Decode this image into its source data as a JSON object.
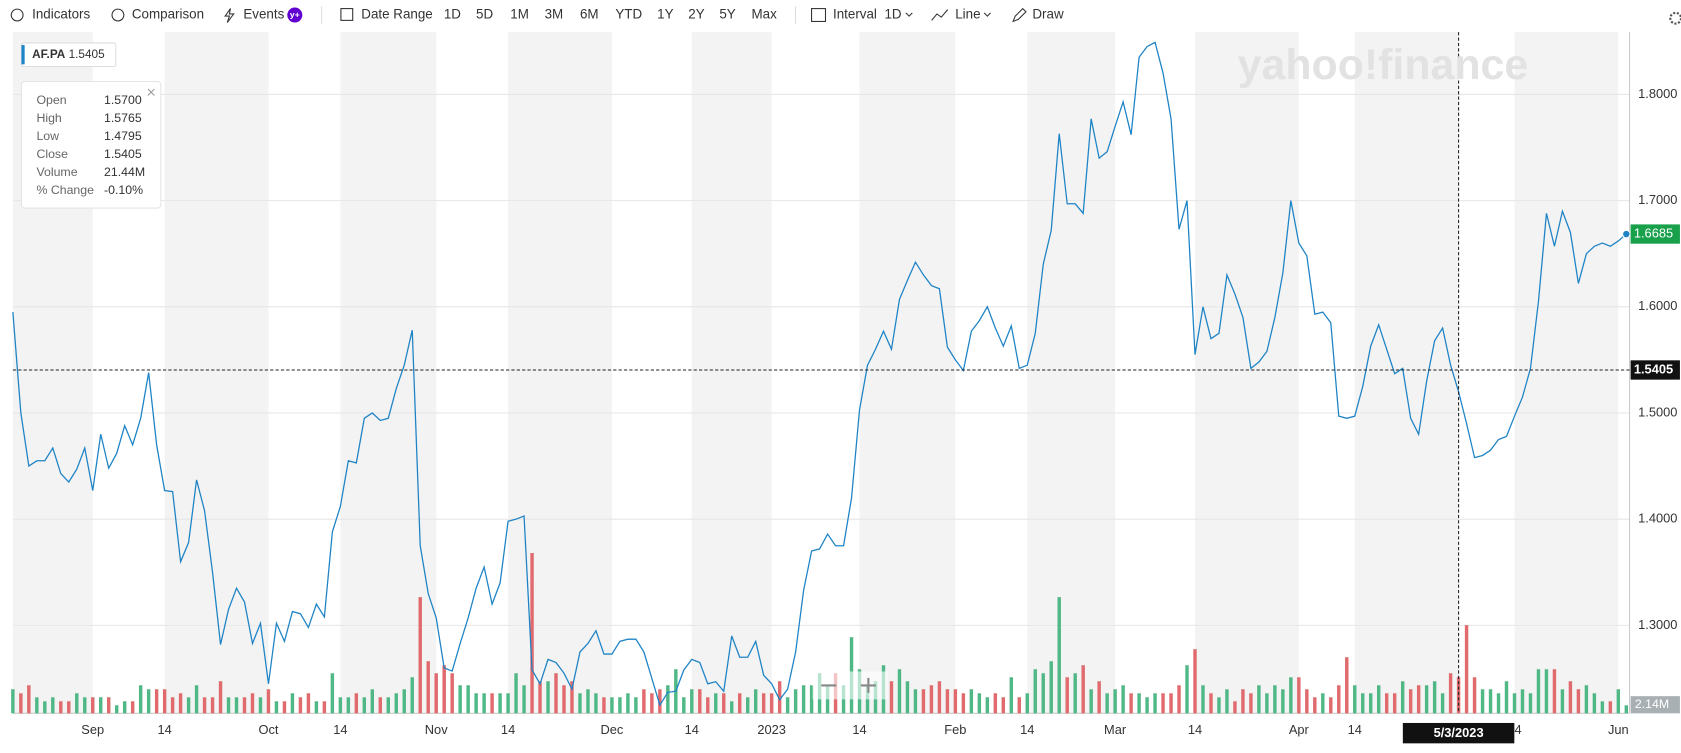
{
  "toolbar": {
    "buttons": [
      "Indicators",
      "Comparison",
      "Events",
      "Date Range",
      "1D",
      "5D",
      "1M",
      "3M",
      "6M",
      "YTD",
      "1Y",
      "2Y",
      "5Y",
      "Max",
      "Interval",
      "1D",
      "Line",
      "Draw"
    ],
    "events_badge": "y+"
  },
  "watermark": "yahoo!finance",
  "tooltip": {
    "rows": [
      [
        "Open",
        "1.5700"
      ],
      [
        "High",
        "1.5765"
      ],
      [
        "Low",
        "1.4795"
      ],
      [
        "Close",
        "1.5405"
      ],
      [
        "Volume",
        "21.44M"
      ],
      [
        "% Change",
        "-0.10%"
      ]
    ]
  },
  "chart_data": {
    "type": "line",
    "categories": [
      null,
      null,
      null,
      null,
      null,
      null,
      null,
      null,
      null,
      null,
      "Sep",
      null,
      null,
      null,
      null,
      null,
      null,
      null,
      null,
      "14",
      null,
      null,
      null,
      null,
      null,
      null,
      null,
      null,
      null,
      null,
      null,
      null,
      "Oct",
      null,
      null,
      null,
      null,
      null,
      null,
      null,
      null,
      "14",
      null,
      null,
      null,
      null,
      null,
      null,
      null,
      null,
      null,
      null,
      null,
      "Nov",
      null,
      null,
      null,
      null,
      null,
      null,
      null,
      null,
      "14",
      null,
      null,
      null,
      null,
      null,
      null,
      null,
      null,
      null,
      null,
      null,
      null,
      "Dec",
      null,
      null,
      null,
      null,
      null,
      null,
      null,
      null,
      null,
      "14",
      null,
      null,
      null,
      null,
      null,
      null,
      null,
      null,
      null,
      "2023",
      null,
      null,
      null,
      null,
      null,
      null,
      null,
      null,
      null,
      null,
      "14",
      null,
      null,
      null,
      null,
      null,
      null,
      null,
      null,
      null,
      null,
      null,
      "Feb",
      null,
      null,
      null,
      null,
      null,
      null,
      null,
      null,
      "14",
      null,
      null,
      null,
      null,
      null,
      null,
      null,
      null,
      null,
      null,
      "Mar",
      null,
      null,
      null,
      null,
      null,
      null,
      null,
      null,
      null,
      "14",
      null,
      null,
      null,
      null,
      null,
      null,
      null,
      null,
      null,
      null,
      null,
      null,
      "Apr",
      null,
      null,
      null,
      null,
      null,
      null,
      "14",
      null,
      null,
      null,
      null,
      null,
      null,
      null,
      null,
      null,
      null,
      null,
      null,
      "5/3/2023",
      null,
      null,
      null,
      null,
      null,
      null,
      "14",
      null,
      null,
      null,
      null,
      null,
      null,
      null,
      null,
      null,
      null,
      null,
      null,
      "Jun",
      null
    ],
    "series": [
      {
        "name": "AF.PA",
        "color": "#1f84c6",
        "values": [
          1.595,
          1.5,
          1.45,
          1.455,
          1.455,
          1.467,
          1.443,
          1.435,
          1.447,
          1.467,
          1.427,
          1.48,
          1.448,
          1.462,
          1.488,
          1.47,
          1.495,
          1.538,
          1.47,
          1.427,
          1.426,
          1.36,
          1.378,
          1.437,
          1.408,
          1.35,
          1.282,
          1.315,
          1.335,
          1.322,
          1.283,
          1.302,
          1.245,
          1.302,
          1.285,
          1.313,
          1.311,
          1.298,
          1.32,
          1.308,
          1.388,
          1.412,
          1.455,
          1.453,
          1.495,
          1.5,
          1.493,
          1.495,
          1.523,
          1.545,
          1.578,
          1.375,
          1.33,
          1.307,
          1.26,
          1.257,
          1.283,
          1.307,
          1.335,
          1.355,
          1.32,
          1.34,
          1.398,
          1.4,
          1.403,
          1.258,
          1.245,
          1.268,
          1.265,
          1.255,
          1.24,
          1.275,
          1.283,
          1.295,
          1.273,
          1.273,
          1.285,
          1.287,
          1.287,
          1.275,
          1.25,
          1.225,
          1.237,
          1.238,
          1.258,
          1.268,
          1.265,
          1.245,
          1.247,
          1.238,
          1.29,
          1.27,
          1.27,
          1.285,
          1.253,
          1.245,
          1.23,
          1.24,
          1.275,
          1.333,
          1.37,
          1.372,
          1.386,
          1.375,
          1.375,
          1.42,
          1.503,
          1.545,
          1.56,
          1.577,
          1.56,
          1.607,
          1.625,
          1.642,
          1.63,
          1.62,
          1.617,
          1.562,
          1.55,
          1.54,
          1.577,
          1.587,
          1.6,
          1.58,
          1.563,
          1.582,
          1.542,
          1.545,
          1.575,
          1.64,
          1.672,
          1.763,
          1.697,
          1.697,
          1.688,
          1.777,
          1.74,
          1.746,
          1.77,
          1.793,
          1.762,
          1.835,
          1.845,
          1.849,
          1.82,
          1.777,
          1.673,
          1.7,
          1.555,
          1.6,
          1.57,
          1.575,
          1.63,
          1.612,
          1.59,
          1.542,
          1.548,
          1.558,
          1.59,
          1.632,
          1.7,
          1.66,
          1.648,
          1.593,
          1.595,
          1.585,
          1.497,
          1.495,
          1.497,
          1.525,
          1.563,
          1.583,
          1.56,
          1.537,
          1.542,
          1.495,
          1.48,
          1.53,
          1.568,
          1.58,
          1.545,
          1.52,
          1.49,
          1.458,
          1.46,
          1.465,
          1.475,
          1.478,
          1.497,
          1.515,
          1.542,
          1.605,
          1.688,
          1.657,
          1.69,
          1.67,
          1.622,
          1.65,
          1.657,
          1.66,
          1.657,
          1.662,
          1.6685
        ]
      },
      {
        "name": "Volume",
        "axis": "y2",
        "up_color": "#4fb886",
        "down_color": "#e06a6e",
        "values": [
          6,
          5,
          7,
          4,
          3,
          4,
          3,
          3,
          5,
          4,
          4,
          4,
          4,
          2,
          3,
          3,
          7,
          6,
          6,
          6,
          4,
          5,
          4,
          7,
          4,
          4,
          8,
          4,
          4,
          4,
          5,
          4,
          6,
          3,
          3,
          5,
          4,
          5,
          3,
          3,
          10,
          4,
          4,
          5,
          4,
          6,
          4,
          4,
          5,
          6,
          9,
          29,
          13,
          10,
          12,
          10,
          7,
          7,
          5,
          5,
          5,
          5,
          5,
          10,
          7,
          40,
          8,
          8,
          10,
          7,
          8,
          5,
          6,
          5,
          4,
          4,
          4,
          5,
          4,
          6,
          5,
          6,
          7,
          11,
          4,
          6,
          6,
          4,
          5,
          5,
          3,
          5,
          4,
          6,
          5,
          5,
          8,
          4,
          6,
          7,
          7,
          10,
          7,
          10,
          7,
          19,
          11,
          7,
          8,
          12,
          8,
          11,
          8,
          6,
          6,
          7,
          8,
          6,
          6,
          5,
          6,
          5,
          4,
          5,
          4,
          9,
          4,
          5,
          11,
          10,
          13,
          29,
          9,
          10,
          12,
          6,
          8,
          5,
          6,
          7,
          5,
          5,
          4,
          5,
          5,
          5,
          7,
          12,
          16,
          7,
          5,
          4,
          6,
          3,
          6,
          5,
          7,
          5,
          7,
          6,
          9,
          9,
          6,
          4,
          5,
          4,
          7,
          14,
          7,
          5,
          5,
          7,
          5,
          5,
          8,
          6,
          7,
          7,
          8,
          5,
          10,
          9,
          22,
          9,
          6,
          6,
          5,
          8,
          5,
          6,
          5,
          11,
          11,
          11,
          6,
          8,
          6,
          7,
          5,
          3,
          3,
          6,
          2
        ]
      }
    ],
    "ylim": [
      1.2172,
      1.8586
    ],
    "yticks": [
      {
        "value": 1.3,
        "label": "1.3000"
      },
      {
        "value": 1.4,
        "label": "1.4000"
      },
      {
        "value": 1.5,
        "label": "1.5000"
      },
      {
        "value": 1.6,
        "label": "1.6000"
      },
      {
        "value": 1.7,
        "label": "1.7000"
      },
      {
        "value": 1.8,
        "label": "1.8000"
      }
    ],
    "y2lim": [
      0,
      170
    ],
    "grid": true,
    "crosshair_price": 1.5405,
    "volume_marker": {
      "value": 2.14,
      "label": "2.14M"
    },
    "last_price_color": "#18a04b"
  }
}
